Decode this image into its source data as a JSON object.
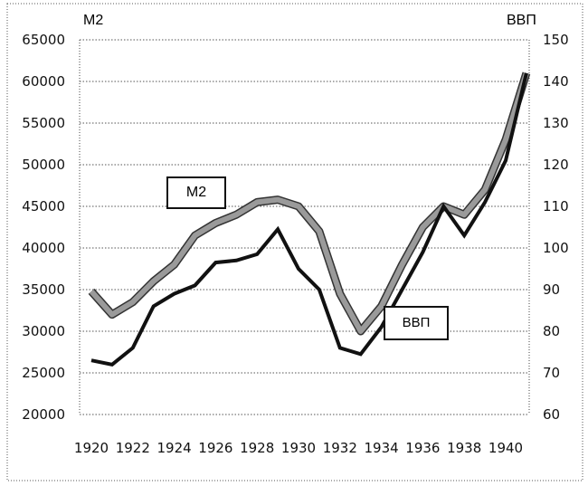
{
  "chart_data": {
    "type": "line",
    "title": "",
    "xlabel": "",
    "ylabel": "М2",
    "ylabel_right": "ВВП",
    "x": [
      1920,
      1921,
      1922,
      1923,
      1924,
      1925,
      1926,
      1927,
      1928,
      1929,
      1930,
      1931,
      1932,
      1933,
      1934,
      1935,
      1936,
      1937,
      1938,
      1939,
      1940,
      1941
    ],
    "x_tick_labels": [
      "1920",
      "1922",
      "1924",
      "1926",
      "1928",
      "1930",
      "1932",
      "1934",
      "1936",
      "1938",
      "1940"
    ],
    "ylim": [
      20000,
      65000
    ],
    "y_tick_labels": [
      "20000",
      "25000",
      "30000",
      "35000",
      "40000",
      "45000",
      "50000",
      "55000",
      "60000",
      "65000"
    ],
    "ylim_right": [
      60,
      150
    ],
    "y_right_tick_labels": [
      "60",
      "70",
      "80",
      "90",
      "100",
      "110",
      "120",
      "130",
      "140",
      "150"
    ],
    "grid": true,
    "series": [
      {
        "name": "М2",
        "axis": "left",
        "color": "#9a9a9a",
        "values": [
          34800,
          32000,
          33500,
          36000,
          38000,
          41500,
          43000,
          44000,
          45500,
          45800,
          45000,
          42000,
          34500,
          30000,
          33000,
          38000,
          42500,
          45000,
          44000,
          47000,
          53000,
          61000
        ]
      },
      {
        "name": "ВВП",
        "axis": "right",
        "color": "#111111",
        "values": [
          73,
          72,
          76,
          86,
          89,
          91,
          96.5,
          97,
          98.5,
          104.5,
          95,
          90,
          76,
          74.5,
          81,
          90,
          99,
          110,
          103,
          111,
          121,
          142
        ]
      }
    ]
  }
}
